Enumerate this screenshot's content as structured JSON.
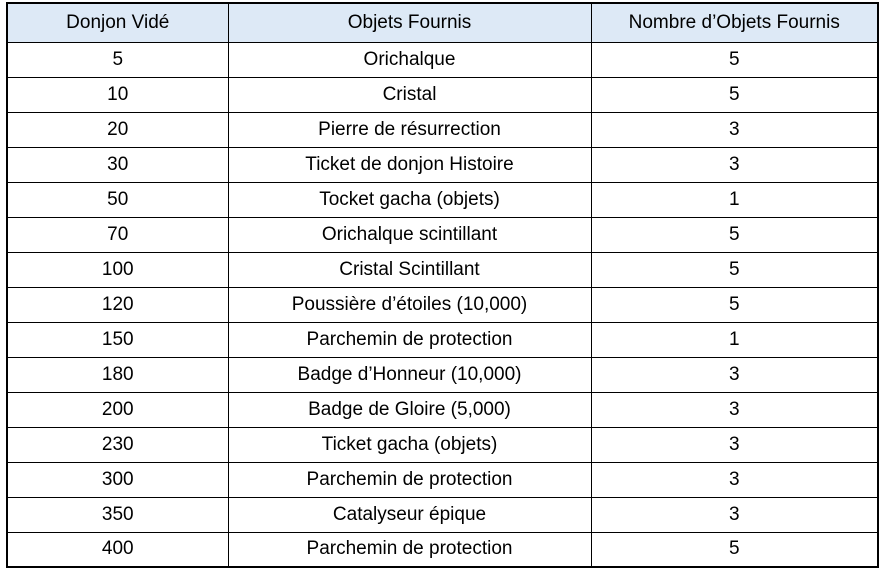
{
  "page": {
    "background": "#ffffff"
  },
  "table": {
    "style": {
      "header_bg": "#dde9f6",
      "border_color": "#000000",
      "text_color": "#000000"
    },
    "columns": [
      {
        "key": "donjon",
        "label": "Donjon Vidé"
      },
      {
        "key": "objet",
        "label": "Objets Fournis"
      },
      {
        "key": "nombre",
        "label": "Nombre d’Objets Fournis"
      }
    ],
    "rows": [
      {
        "donjon": "5",
        "objet": "Orichalque",
        "nombre": "5"
      },
      {
        "donjon": "10",
        "objet": "Cristal",
        "nombre": "5"
      },
      {
        "donjon": "20",
        "objet": "Pierre de résurrection",
        "nombre": "3"
      },
      {
        "donjon": "30",
        "objet": "Ticket de donjon Histoire",
        "nombre": "3"
      },
      {
        "donjon": "50",
        "objet": "Tocket gacha (objets)",
        "nombre": "1"
      },
      {
        "donjon": "70",
        "objet": "Orichalque scintillant",
        "nombre": "5"
      },
      {
        "donjon": "100",
        "objet": "Cristal Scintillant",
        "nombre": "5"
      },
      {
        "donjon": "120",
        "objet": "Poussière d’étoiles (10,000)",
        "nombre": "5"
      },
      {
        "donjon": "150",
        "objet": "Parchemin de protection",
        "nombre": "1"
      },
      {
        "donjon": "180",
        "objet": "Badge d’Honneur (10,000)",
        "nombre": "3"
      },
      {
        "donjon": "200",
        "objet": "Badge de Gloire (5,000)",
        "nombre": "3"
      },
      {
        "donjon": "230",
        "objet": "Ticket gacha (objets)",
        "nombre": "3"
      },
      {
        "donjon": "300",
        "objet": "Parchemin de protection",
        "nombre": "3"
      },
      {
        "donjon": "350",
        "objet": "Catalyseur épique",
        "nombre": "3"
      },
      {
        "donjon": "400",
        "objet": "Parchemin de protection",
        "nombre": "5"
      }
    ]
  }
}
